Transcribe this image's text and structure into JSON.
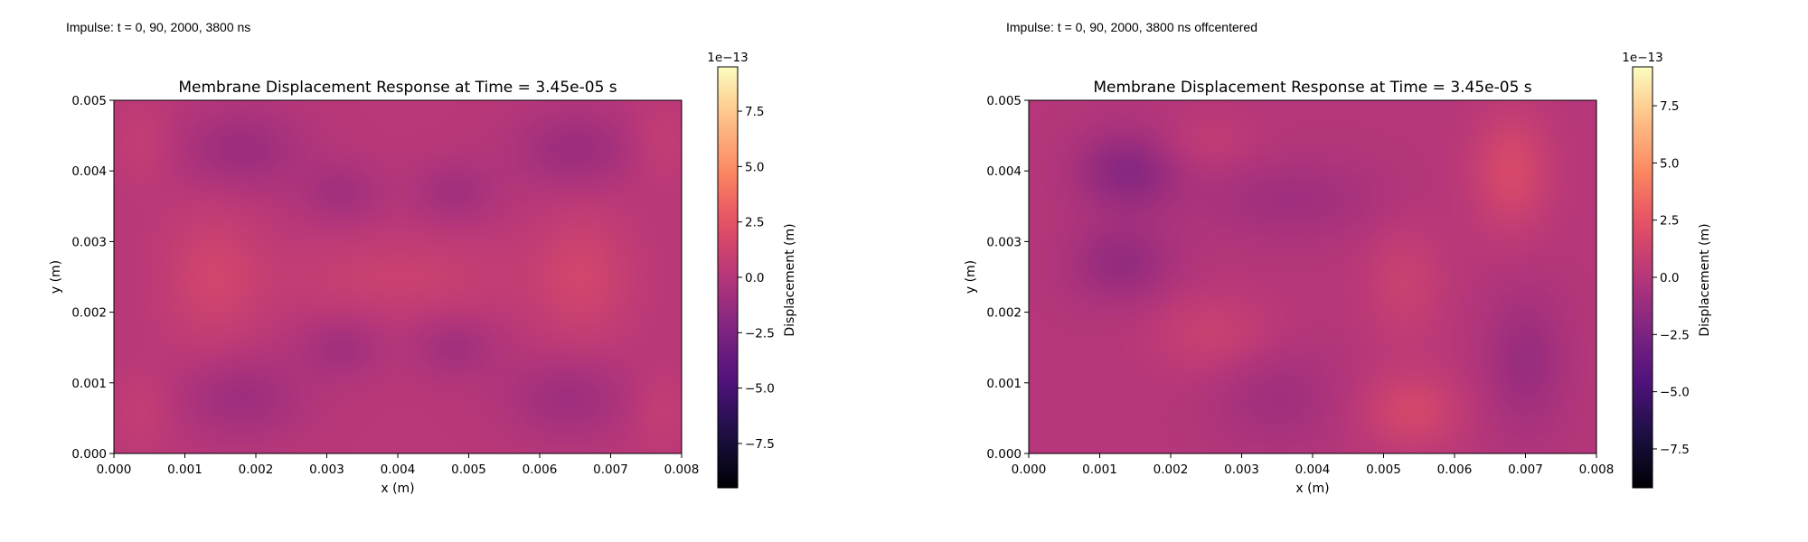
{
  "panels": [
    {
      "caption": "Impulse: t = 0, 90, 2000, 3800 ns"
    },
    {
      "caption": "Impulse: t = 0, 90, 2000, 3800 ns offcentered"
    }
  ],
  "chart_data": [
    {
      "type": "heatmap",
      "title": "Membrane Displacement Response at Time = 3.45e-05 s",
      "xlabel": "x (m)",
      "ylabel": "y (m)",
      "xlim": [
        0,
        0.008
      ],
      "ylim": [
        0,
        0.005
      ],
      "xticks": [
        "0.000",
        "0.001",
        "0.002",
        "0.003",
        "0.004",
        "0.005",
        "0.006",
        "0.007",
        "0.008"
      ],
      "yticks": [
        "0.000",
        "0.001",
        "0.002",
        "0.003",
        "0.004",
        "0.005"
      ],
      "colormap": "magma",
      "colorbar": {
        "label": "Displacement (m)",
        "offset_text": "1e−13",
        "range": [
          -9.5,
          9.5
        ],
        "ticks": [
          "−7.5",
          "−5.0",
          "−2.5",
          "0.0",
          "2.5",
          "5.0",
          "7.5"
        ],
        "tick_values": [
          -7.5,
          -5.0,
          -2.5,
          0.0,
          2.5,
          5.0,
          7.5
        ]
      },
      "base_value": 0.15,
      "features": [
        {
          "x": 0.0018,
          "y": 0.0043,
          "sx": 0.0006,
          "sy": 0.0004,
          "amp": -1.3
        },
        {
          "x": 0.0065,
          "y": 0.0043,
          "sx": 0.0006,
          "sy": 0.0004,
          "amp": -1.3
        },
        {
          "x": 0.0018,
          "y": 0.0008,
          "sx": 0.0006,
          "sy": 0.0004,
          "amp": -1.2
        },
        {
          "x": 0.0064,
          "y": 0.0008,
          "sx": 0.0006,
          "sy": 0.0004,
          "amp": -1.2
        },
        {
          "x": 0.0032,
          "y": 0.0037,
          "sx": 0.0004,
          "sy": 0.0003,
          "amp": -1.0
        },
        {
          "x": 0.0048,
          "y": 0.0037,
          "sx": 0.0004,
          "sy": 0.0003,
          "amp": -1.0
        },
        {
          "x": 0.0032,
          "y": 0.0015,
          "sx": 0.0004,
          "sy": 0.0003,
          "amp": -1.0
        },
        {
          "x": 0.0048,
          "y": 0.0015,
          "sx": 0.0004,
          "sy": 0.0003,
          "amp": -1.0
        },
        {
          "x": 0.0014,
          "y": 0.0025,
          "sx": 0.0005,
          "sy": 0.0007,
          "amp": 1.2
        },
        {
          "x": 0.0066,
          "y": 0.0025,
          "sx": 0.0005,
          "sy": 0.0007,
          "amp": 1.2
        },
        {
          "x": 0.004,
          "y": 0.0025,
          "sx": 0.0012,
          "sy": 0.0004,
          "amp": 0.9
        },
        {
          "x": 0.0004,
          "y": 0.0044,
          "sx": 0.0003,
          "sy": 0.0004,
          "amp": 0.6
        },
        {
          "x": 0.0077,
          "y": 0.0044,
          "sx": 0.0003,
          "sy": 0.0004,
          "amp": 0.6
        },
        {
          "x": 0.0004,
          "y": 0.0006,
          "sx": 0.0003,
          "sy": 0.0004,
          "amp": 0.6
        },
        {
          "x": 0.0077,
          "y": 0.0006,
          "sx": 0.0003,
          "sy": 0.0004,
          "amp": 0.6
        }
      ]
    },
    {
      "type": "heatmap",
      "title": "Membrane Displacement Response at Time = 3.45e-05 s",
      "xlabel": "x (m)",
      "ylabel": "y (m)",
      "xlim": [
        0,
        0.008
      ],
      "ylim": [
        0,
        0.005
      ],
      "xticks": [
        "0.000",
        "0.001",
        "0.002",
        "0.003",
        "0.004",
        "0.005",
        "0.006",
        "0.007",
        "0.008"
      ],
      "yticks": [
        "0.000",
        "0.001",
        "0.002",
        "0.003",
        "0.004",
        "0.005"
      ],
      "colormap": "magma",
      "colorbar": {
        "label": "Displacement (m)",
        "offset_text": "1e−13",
        "range": [
          -9.2,
          9.2
        ],
        "ticks": [
          "−7.5",
          "−5.0",
          "−2.5",
          "0.0",
          "2.5",
          "5.0",
          "7.5"
        ],
        "tick_values": [
          -7.5,
          -5.0,
          -2.5,
          0.0,
          2.5,
          5.0,
          7.5
        ]
      },
      "base_value": 0.0,
      "features": [
        {
          "x": 0.0014,
          "y": 0.004,
          "sx": 0.0005,
          "sy": 0.0004,
          "amp": -1.9
        },
        {
          "x": 0.0013,
          "y": 0.0027,
          "sx": 0.0005,
          "sy": 0.0004,
          "amp": -1.4
        },
        {
          "x": 0.0037,
          "y": 0.0036,
          "sx": 0.0009,
          "sy": 0.0004,
          "amp": -0.9
        },
        {
          "x": 0.0035,
          "y": 0.0008,
          "sx": 0.0006,
          "sy": 0.0005,
          "amp": -0.9
        },
        {
          "x": 0.007,
          "y": 0.0013,
          "sx": 0.0004,
          "sy": 0.0007,
          "amp": -1.2
        },
        {
          "x": 0.0068,
          "y": 0.004,
          "sx": 0.0004,
          "sy": 0.0006,
          "amp": 1.7
        },
        {
          "x": 0.0054,
          "y": 0.0006,
          "sx": 0.0005,
          "sy": 0.0004,
          "amp": 1.5
        },
        {
          "x": 0.0053,
          "y": 0.0024,
          "sx": 0.0004,
          "sy": 0.0006,
          "amp": 1.0
        },
        {
          "x": 0.0026,
          "y": 0.0017,
          "sx": 0.0006,
          "sy": 0.0004,
          "amp": 1.0
        },
        {
          "x": 0.0025,
          "y": 0.0044,
          "sx": 0.0005,
          "sy": 0.0003,
          "amp": 0.6
        }
      ]
    }
  ]
}
